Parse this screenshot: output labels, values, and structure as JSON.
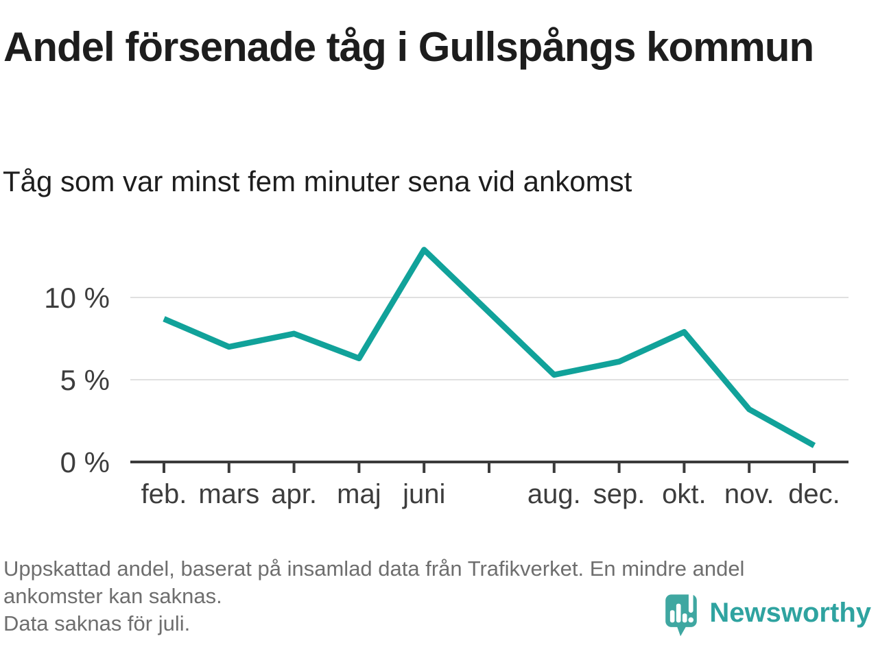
{
  "header": {
    "title": "Andel försenade tåg i Gullspångs kommun",
    "subtitle": "Tåg som var minst fem minuter sena vid ankomst"
  },
  "chart_data": {
    "type": "line",
    "title": "Andel försenade tåg i Gullspångs kommun",
    "subtitle": "Tåg som var minst fem minuter sena vid ankomst",
    "categories": [
      "feb.",
      "mars",
      "apr.",
      "maj",
      "juni",
      "juli",
      "aug.",
      "sep.",
      "okt.",
      "nov.",
      "dec."
    ],
    "tick_labels": [
      "feb.",
      "mars",
      "apr.",
      "maj",
      "juni",
      "",
      "aug.",
      "sep.",
      "okt.",
      "nov.",
      "dec."
    ],
    "values": [
      8.7,
      7.0,
      7.8,
      6.3,
      12.9,
      null,
      5.3,
      6.1,
      7.9,
      3.2,
      1.0
    ],
    "unit": "%",
    "y_ticks": [
      0,
      5,
      10
    ],
    "y_tick_labels": [
      "0 %",
      "5 %",
      "10 %"
    ],
    "ylim": [
      0,
      14
    ],
    "grid": true,
    "legend": "none",
    "missing_data_note": "Data saknas för juli.",
    "line_color": "#11a29a",
    "grid_color": "#e0e0e0",
    "axis_color": "#3b3b3b",
    "tick_label_color": "#3d3d3d"
  },
  "footer": {
    "lines": [
      "Uppskattad andel, baserat på insamlad data från Trafikverket. En mindre andel",
      "ankomster kan saknas.",
      "Data saknas för juli."
    ],
    "brand": {
      "name": "Newsworthy",
      "logo_icon": "newsworthy-bubble-chart-icon",
      "logo_color": "#3fa7a1",
      "text_color": "#2fa3a0"
    }
  }
}
